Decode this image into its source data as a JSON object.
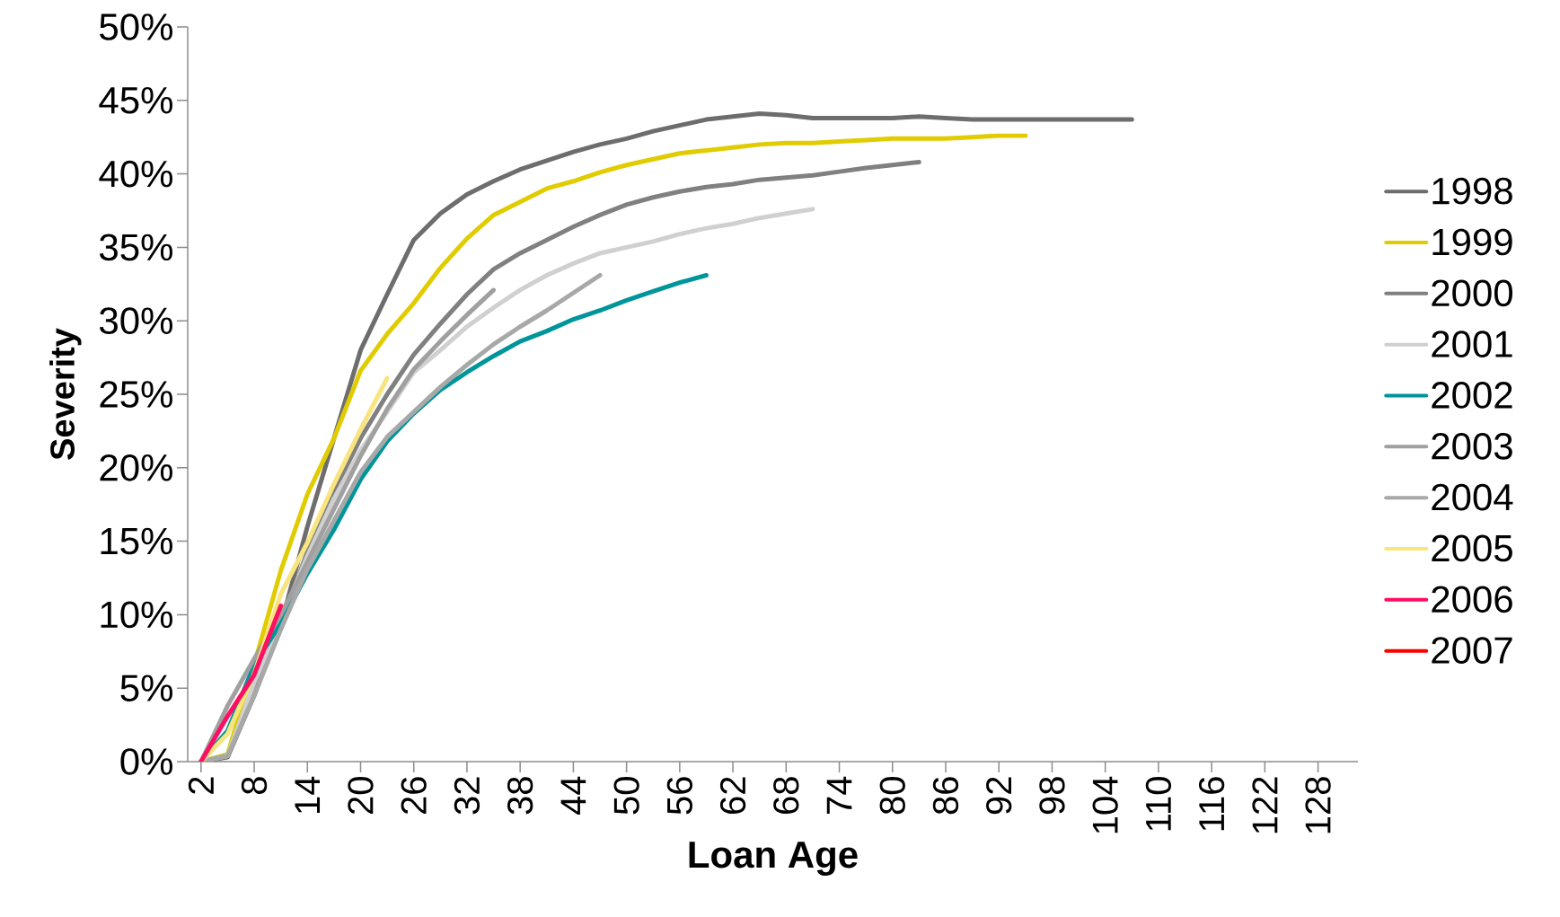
{
  "chart_data": {
    "type": "line",
    "xlabel": "Loan Age",
    "ylabel": "Severity",
    "legend": "right",
    "xlim": [
      0.5,
      132.5
    ],
    "xticks": [
      2,
      8,
      14,
      20,
      26,
      32,
      38,
      44,
      50,
      56,
      62,
      68,
      74,
      80,
      86,
      92,
      98,
      104,
      110,
      116,
      122,
      128
    ],
    "ylim": [
      0,
      50
    ],
    "yticks": [
      {
        "value": 0,
        "label": "0%"
      },
      {
        "value": 5,
        "label": "5%"
      },
      {
        "value": 10,
        "label": "10%"
      },
      {
        "value": 15,
        "label": "15%"
      },
      {
        "value": 20,
        "label": "20%"
      },
      {
        "value": 25,
        "label": "25%"
      },
      {
        "value": 30,
        "label": "30%"
      },
      {
        "value": 35,
        "label": "35%"
      },
      {
        "value": 40,
        "label": "40%"
      },
      {
        "value": 45,
        "label": "45%"
      },
      {
        "value": 50,
        "label": "50%"
      }
    ],
    "series": [
      {
        "name": "1998",
        "color": "#6d6d6d",
        "x": [
          2,
          5,
          8,
          11,
          14,
          17,
          20,
          23,
          26,
          29,
          32,
          35,
          38,
          41,
          44,
          47,
          50,
          53,
          56,
          59,
          62,
          65,
          68,
          71,
          74,
          77,
          80,
          83,
          86,
          89,
          92,
          95,
          98,
          101,
          104,
          107
        ],
        "values": [
          0,
          0.3,
          4.5,
          9.3,
          16,
          22,
          28,
          31.8,
          35.5,
          37.3,
          38.6,
          39.5,
          40.3,
          40.9,
          41.5,
          42,
          42.4,
          42.9,
          43.3,
          43.7,
          43.9,
          44.1,
          44,
          43.8,
          43.8,
          43.8,
          43.8,
          43.9,
          43.8,
          43.7,
          43.7,
          43.7,
          43.7,
          43.7,
          43.7,
          43.7
        ]
      },
      {
        "name": "1999",
        "color": "#e0cc00",
        "x": [
          2,
          5,
          8,
          11,
          14,
          17,
          20,
          23,
          26,
          29,
          32,
          35,
          38,
          41,
          44,
          47,
          50,
          53,
          56,
          59,
          62,
          65,
          68,
          71,
          74,
          77,
          80,
          83,
          86,
          89,
          92,
          95
        ],
        "values": [
          0,
          0.5,
          6.6,
          13,
          18.2,
          22,
          26.6,
          29.1,
          31.2,
          33.6,
          35.6,
          37.2,
          38.1,
          39,
          39.5,
          40.1,
          40.6,
          41,
          41.4,
          41.6,
          41.8,
          42,
          42.1,
          42.1,
          42.2,
          42.3,
          42.4,
          42.4,
          42.4,
          42.5,
          42.6,
          42.6
        ]
      },
      {
        "name": "2000",
        "color": "#808080",
        "x": [
          2,
          5,
          8,
          11,
          14,
          17,
          20,
          23,
          26,
          29,
          32,
          35,
          38,
          41,
          44,
          47,
          50,
          53,
          56,
          59,
          62,
          65,
          68,
          71,
          74,
          77,
          80,
          83
        ],
        "values": [
          0,
          0.4,
          4.8,
          9.3,
          14.3,
          18.4,
          22,
          25,
          27.7,
          29.8,
          31.8,
          33.5,
          34.6,
          35.5,
          36.4,
          37.2,
          37.9,
          38.4,
          38.8,
          39.1,
          39.3,
          39.6,
          39.75,
          39.9,
          40.15,
          40.4,
          40.6,
          40.8
        ]
      },
      {
        "name": "2001",
        "color": "#d0d0d0",
        "x": [
          2,
          5,
          8,
          11,
          14,
          17,
          20,
          23,
          26,
          29,
          32,
          35,
          38,
          41,
          44,
          47,
          50,
          53,
          56,
          59,
          62,
          65,
          68,
          71
        ],
        "values": [
          0,
          0.4,
          5.4,
          9.6,
          14,
          17.9,
          21.2,
          23.8,
          26.5,
          28,
          29.6,
          30.9,
          32.1,
          33.1,
          33.9,
          34.6,
          35,
          35.4,
          35.9,
          36.3,
          36.6,
          37,
          37.3,
          37.6
        ]
      },
      {
        "name": "2002",
        "color": "#00959a",
        "x": [
          2,
          5,
          8,
          11,
          14,
          17,
          20,
          23,
          26,
          29,
          32,
          35,
          38,
          41,
          44,
          47,
          50,
          53,
          56,
          59
        ],
        "values": [
          0,
          2.1,
          6.6,
          9.4,
          12.8,
          15.8,
          19.2,
          21.8,
          23.7,
          25.3,
          26.5,
          27.6,
          28.6,
          29.3,
          30.1,
          30.7,
          31.4,
          32,
          32.6,
          33.1
        ]
      },
      {
        "name": "2003",
        "color": "#a0a0a0",
        "x": [
          2,
          5,
          8,
          11,
          14,
          17,
          20,
          23,
          26,
          29,
          32,
          35
        ],
        "values": [
          0,
          3.8,
          7,
          10,
          13.6,
          17.2,
          20.8,
          24,
          26.7,
          28.6,
          30.4,
          32.1
        ]
      },
      {
        "name": "2004",
        "color": "#a8a8a8",
        "x": [
          2,
          5,
          8,
          11,
          14,
          17,
          20,
          23,
          26,
          29,
          32,
          35,
          38,
          41,
          44,
          47
        ],
        "values": [
          0,
          0.4,
          4.5,
          9,
          13.1,
          16.4,
          19.7,
          22.1,
          23.8,
          25.5,
          27,
          28.4,
          29.6,
          30.7,
          31.9,
          33.1
        ]
      },
      {
        "name": "2005",
        "color": "#f8e57f",
        "x": [
          2,
          5,
          8,
          11,
          14,
          17,
          20,
          23
        ],
        "values": [
          0,
          1.9,
          6,
          11.4,
          14.9,
          18.9,
          22.6,
          26.1
        ]
      },
      {
        "name": "2006",
        "color": "#ff0f64",
        "x": [
          2,
          5,
          8,
          11
        ],
        "values": [
          0,
          3.1,
          5.9,
          10.6
        ]
      },
      {
        "name": "2007",
        "color": "#ff0000"
      }
    ]
  }
}
